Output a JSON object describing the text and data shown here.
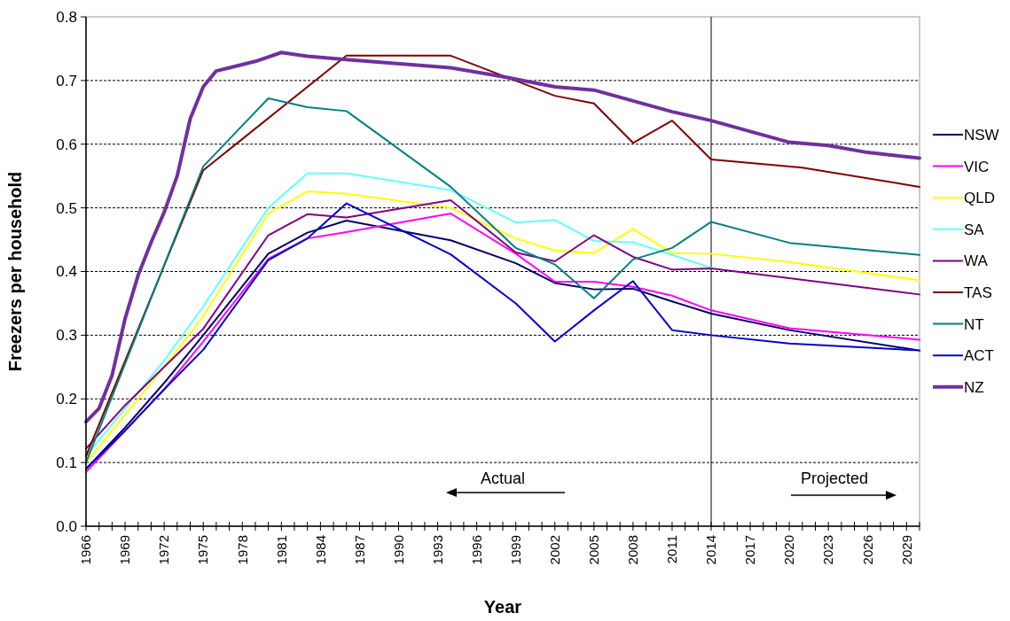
{
  "chart_data": {
    "type": "line",
    "xlabel": "Year",
    "ylabel": "Freezers per household",
    "xlim": [
      1966,
      2030
    ],
    "ylim": [
      0,
      0.8
    ],
    "xticks": [
      1966,
      {
        "value": 1967,
        "label": null
      },
      {
        "value": 1968,
        "label": null
      },
      1969,
      {
        "value": 1970,
        "label": null
      },
      {
        "value": 1971,
        "label": null
      },
      1972,
      {
        "value": 1973,
        "label": null
      },
      {
        "value": 1974,
        "label": null
      },
      1975,
      {
        "value": 1976,
        "label": null
      },
      {
        "value": 1977,
        "label": null
      },
      1978,
      {
        "value": 1979,
        "label": null
      },
      {
        "value": 1980,
        "label": null
      },
      1981,
      {
        "value": 1982,
        "label": null
      },
      {
        "value": 1983,
        "label": null
      },
      1984,
      {
        "value": 1985,
        "label": null
      },
      {
        "value": 1986,
        "label": null
      },
      1987,
      {
        "value": 1988,
        "label": null
      },
      {
        "value": 1989,
        "label": null
      },
      1990,
      {
        "value": 1991,
        "label": null
      },
      {
        "value": 1992,
        "label": null
      },
      1993,
      {
        "value": 1994,
        "label": null
      },
      {
        "value": 1995,
        "label": null
      },
      1996,
      {
        "value": 1997,
        "label": null
      },
      {
        "value": 1998,
        "label": null
      },
      1999,
      {
        "value": 2000,
        "label": null
      },
      {
        "value": 2001,
        "label": null
      },
      2002,
      {
        "value": 2003,
        "label": null
      },
      {
        "value": 2004,
        "label": null
      },
      2005,
      {
        "value": 2006,
        "label": null
      },
      {
        "value": 2007,
        "label": null
      },
      2008,
      {
        "value": 2009,
        "label": null
      },
      {
        "value": 2010,
        "label": null
      },
      2011,
      {
        "value": 2012,
        "label": null
      },
      {
        "value": 2013,
        "label": null
      },
      2014,
      {
        "value": 2015,
        "label": null
      },
      {
        "value": 2016,
        "label": null
      },
      2017,
      {
        "value": 2018,
        "label": null
      },
      {
        "value": 2019,
        "label": null
      },
      2020,
      {
        "value": 2021,
        "label": null
      },
      {
        "value": 2022,
        "label": null
      },
      2023,
      {
        "value": 2024,
        "label": null
      },
      {
        "value": 2025,
        "label": null
      },
      2026,
      {
        "value": 2027,
        "label": null
      },
      {
        "value": 2028,
        "label": null
      },
      2029,
      {
        "value": 2030,
        "label": null
      }
    ],
    "yticks": [
      {
        "value": 0,
        "label": "0.0"
      },
      {
        "value": 0.1,
        "label": "0.1"
      },
      {
        "value": 0.2,
        "label": "0.2"
      },
      {
        "value": 0.3,
        "label": "0.3"
      },
      {
        "value": 0.4,
        "label": "0.4"
      },
      {
        "value": 0.5,
        "label": "0.5"
      },
      {
        "value": 0.6,
        "label": "0.6"
      },
      {
        "value": 0.7,
        "label": "0.7"
      },
      {
        "value": 0.8,
        "label": "0.8"
      }
    ],
    "grid": "y",
    "legend": "right",
    "marker": "none",
    "line_style": "solid",
    "ref_lines": [
      {
        "axis": "x",
        "value": 2014,
        "color": "#000000"
      }
    ],
    "annotations": [
      "Actual",
      "Projected"
    ],
    "series": [
      {
        "name": "NSW",
        "color": "#000066",
        "x": [
          1966,
          1969,
          1972,
          1975,
          1980,
          1983,
          1986,
          1994,
          1999,
          2002,
          2005,
          2008,
          2011,
          2014,
          2020,
          2030
        ],
        "values": [
          0.09,
          0.155,
          0.225,
          0.3,
          0.428,
          0.461,
          0.48,
          0.449,
          0.413,
          0.382,
          0.372,
          0.373,
          0.353,
          0.334,
          0.308,
          0.276
        ]
      },
      {
        "name": "VIC",
        "color": "#ff00ff",
        "x": [
          1966,
          1969,
          1972,
          1975,
          1980,
          1983,
          1986,
          1994,
          1999,
          2002,
          2005,
          2008,
          2011,
          2014,
          2020,
          2030
        ],
        "values": [
          0.085,
          0.15,
          0.215,
          0.29,
          0.42,
          0.452,
          0.462,
          0.491,
          0.428,
          0.384,
          0.384,
          0.376,
          0.362,
          0.339,
          0.311,
          0.293
        ]
      },
      {
        "name": "QLD",
        "color": "#ffff00",
        "x": [
          1966,
          1969,
          1972,
          1975,
          1980,
          1983,
          1986,
          1994,
          1999,
          2002,
          2005,
          2008,
          2011,
          2014,
          2020,
          2030
        ],
        "values": [
          0.1,
          0.175,
          0.25,
          0.33,
          0.491,
          0.526,
          0.522,
          0.5,
          0.452,
          0.433,
          0.429,
          0.467,
          0.429,
          0.428,
          0.415,
          0.386
        ]
      },
      {
        "name": "SA",
        "color": "#66ffff",
        "x": [
          1966,
          1972,
          1975,
          1980,
          1983,
          1986,
          1994,
          1999,
          2002,
          2005,
          2008,
          2011,
          2014
        ],
        "values": [
          0.11,
          0.26,
          0.345,
          0.5,
          0.554,
          0.554,
          0.528,
          0.477,
          0.481,
          0.448,
          0.446,
          0.426,
          0.406
        ]
      },
      {
        "name": "WA",
        "color": "#800080",
        "x": [
          1966,
          1969,
          1972,
          1975,
          1980,
          1983,
          1986,
          1994,
          1999,
          2002,
          2005,
          2008,
          2011,
          2014,
          2030
        ],
        "values": [
          0.122,
          0.19,
          0.25,
          0.31,
          0.457,
          0.49,
          0.485,
          0.512,
          0.43,
          0.416,
          0.457,
          0.423,
          0.403,
          0.405,
          0.364
        ]
      },
      {
        "name": "TAS",
        "color": "#800000",
        "x": [
          1966,
          1975,
          1986,
          1994,
          2002,
          2005,
          2008,
          2011,
          2014,
          2021,
          2030
        ],
        "values": [
          0.11,
          0.559,
          0.739,
          0.739,
          0.676,
          0.664,
          0.602,
          0.637,
          0.576,
          0.563,
          0.533
        ]
      },
      {
        "name": "NT",
        "color": "#008080",
        "x": [
          1966,
          1975,
          1980,
          1983,
          1986,
          1994,
          1999,
          2002,
          2005,
          2008,
          2011,
          2014,
          2020,
          2030
        ],
        "values": [
          0.1,
          0.565,
          0.672,
          0.658,
          0.652,
          0.533,
          0.437,
          0.411,
          0.358,
          0.419,
          0.437,
          0.478,
          0.445,
          0.426
        ]
      },
      {
        "name": "ACT",
        "color": "#0000cc",
        "x": [
          1966,
          1969,
          1972,
          1975,
          1980,
          1983,
          1986,
          1994,
          1999,
          2002,
          2005,
          2008,
          2011,
          2014,
          2020,
          2030
        ],
        "values": [
          0.09,
          0.15,
          0.215,
          0.277,
          0.418,
          0.452,
          0.507,
          0.427,
          0.35,
          0.29,
          0.339,
          0.385,
          0.308,
          0.3,
          0.287,
          0.276
        ]
      },
      {
        "name": "NZ",
        "color": "#7030a0",
        "x": [
          1966,
          1967,
          1968,
          1969,
          1970,
          1971,
          1972,
          1973,
          1974,
          1975,
          1976,
          1979,
          1981,
          1983,
          1986,
          1994,
          1998,
          2002,
          2005,
          2008,
          2011,
          2014,
          2020,
          2023,
          2026,
          2030
        ],
        "values": [
          0.164,
          0.185,
          0.237,
          0.326,
          0.394,
          0.446,
          0.493,
          0.55,
          0.64,
          0.69,
          0.715,
          0.73,
          0.744,
          0.738,
          0.733,
          0.72,
          0.706,
          0.69,
          0.685,
          0.668,
          0.651,
          0.637,
          0.603,
          0.598,
          0.587,
          0.578
        ]
      }
    ]
  }
}
